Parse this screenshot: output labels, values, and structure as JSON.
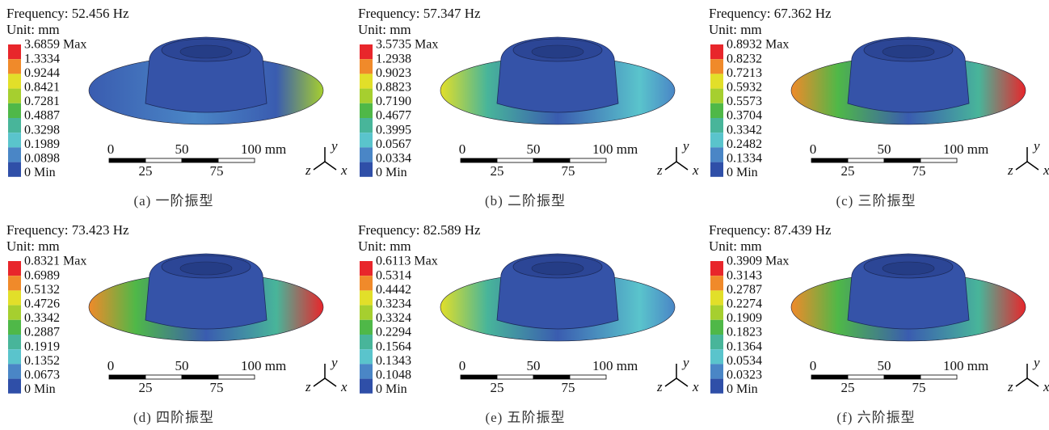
{
  "panels": [
    {
      "frequency": "Frequency: 52.456 Hz",
      "unit": "Unit: mm",
      "legend": [
        "3.6859 Max",
        "1.3334",
        "0.9244",
        "0.8421",
        "0.7281",
        "0.4887",
        "0.3298",
        "0.1989",
        "0.0898",
        "0 Min"
      ],
      "scale_top": [
        "0",
        "50",
        "100 mm"
      ],
      "scale_bottom": [
        "25",
        "75"
      ],
      "axes": [
        "y",
        "z",
        "x"
      ],
      "caption": "(a) 一阶振型"
    },
    {
      "frequency": "Frequency: 57.347 Hz",
      "unit": "Unit: mm",
      "legend": [
        "3.5735 Max",
        "1.2938",
        "0.9023",
        "0.8823",
        "0.7190",
        "0.4677",
        "0.3995",
        "0.0567",
        "0.0334",
        "0 Min"
      ],
      "scale_top": [
        "0",
        "50",
        "100 mm"
      ],
      "scale_bottom": [
        "25",
        "75"
      ],
      "axes": [
        "y",
        "z",
        "x"
      ],
      "caption": "(b) 二阶振型"
    },
    {
      "frequency": "Frequency: 67.362 Hz",
      "unit": "Unit: mm",
      "legend": [
        "0.8932 Max",
        "0.8232",
        "0.7213",
        "0.5932",
        "0.5573",
        "0.3704",
        "0.3342",
        "0.2482",
        "0.1334",
        "0 Min"
      ],
      "scale_top": [
        "0",
        "50",
        "100 mm"
      ],
      "scale_bottom": [
        "25",
        "75"
      ],
      "axes": [
        "y",
        "z",
        "x"
      ],
      "caption": "(c) 三阶振型"
    },
    {
      "frequency": "Frequency: 73.423 Hz",
      "unit": "Unit: mm",
      "legend": [
        "0.8321 Max",
        "0.6989",
        "0.5132",
        "0.4726",
        "0.3342",
        "0.2887",
        "0.1919",
        "0.1352",
        "0.0673",
        "0 Min"
      ],
      "scale_top": [
        "0",
        "50",
        "100 mm"
      ],
      "scale_bottom": [
        "25",
        "75"
      ],
      "axes": [
        "y",
        "z",
        "x"
      ],
      "caption": "(d) 四阶振型"
    },
    {
      "frequency": "Frequency: 82.589 Hz",
      "unit": "Unit: mm",
      "legend": [
        "0.6113 Max",
        "0.5314",
        "0.4442",
        "0.3234",
        "0.3324",
        "0.2294",
        "0.1564",
        "0.1343",
        "0.1048",
        "0 Min"
      ],
      "scale_top": [
        "0",
        "50",
        "100 mm"
      ],
      "scale_bottom": [
        "25",
        "75"
      ],
      "axes": [
        "y",
        "z",
        "x"
      ],
      "caption": "(e) 五阶振型"
    },
    {
      "frequency": "Frequency: 87.439 Hz",
      "unit": "Unit: mm",
      "legend": [
        "0.3909 Max",
        "0.3143",
        "0.2787",
        "0.2274",
        "0.1909",
        "0.1823",
        "0.1364",
        "0.0534",
        "0.0323",
        "0 Min"
      ],
      "scale_top": [
        "0",
        "50",
        "100 mm"
      ],
      "scale_bottom": [
        "25",
        "75"
      ],
      "axes": [
        "y",
        "z",
        "x"
      ],
      "caption": "(f) 六阶振型"
    }
  ]
}
